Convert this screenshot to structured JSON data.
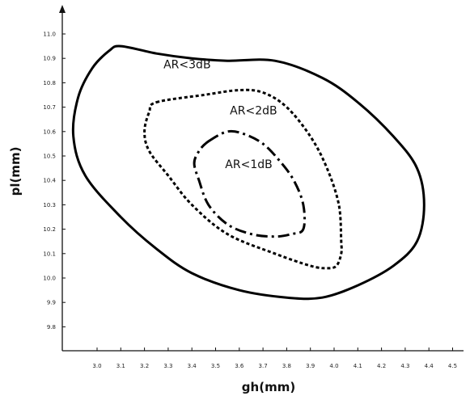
{
  "chart_data": {
    "type": "contour",
    "xlabel": "gh(mm)",
    "ylabel": "pl(mm)",
    "xlim": [
      2.8,
      4.5
    ],
    "ylim": [
      9.7,
      11.05
    ],
    "x_ticks": [
      "3.0",
      "3.1",
      "3.2",
      "3.3",
      "3.4",
      "3.5",
      "3.6",
      "3.7",
      "3.8",
      "3.9",
      "4.0",
      "4.1",
      "4.2",
      "4.3",
      "4.4",
      "4.5"
    ],
    "y_ticks": [
      "9.8",
      "9.9",
      "10.0",
      "10.1",
      "10.2",
      "10.3",
      "10.4",
      "10.5",
      "10.6",
      "10.7",
      "10.8",
      "10.9",
      "11.0"
    ],
    "series": [
      {
        "name": "AR<3dB",
        "style": "solid",
        "color": "#000000",
        "x": [
          3.1,
          3.25,
          3.4,
          3.55,
          3.75,
          3.95,
          4.1,
          4.25,
          4.35,
          4.38,
          4.35,
          4.25,
          4.1,
          3.95,
          3.8,
          3.6,
          3.4,
          3.25,
          3.1,
          2.95,
          2.9,
          2.92,
          2.98,
          3.05,
          3.1
        ],
        "y": [
          10.95,
          10.92,
          10.9,
          10.89,
          10.89,
          10.82,
          10.72,
          10.58,
          10.45,
          10.3,
          10.15,
          10.05,
          9.97,
          9.92,
          9.92,
          9.95,
          10.02,
          10.12,
          10.25,
          10.42,
          10.58,
          10.74,
          10.86,
          10.93,
          10.95
        ]
      },
      {
        "name": "AR<2dB",
        "style": "dotted",
        "color": "#000000",
        "x": [
          3.25,
          3.45,
          3.6,
          3.7,
          3.8,
          3.9,
          3.97,
          4.02,
          4.03,
          4.03,
          4.01,
          3.97,
          3.9,
          3.75,
          3.55,
          3.4,
          3.3,
          3.22,
          3.2,
          3.22,
          3.25
        ],
        "y": [
          10.72,
          10.75,
          10.77,
          10.76,
          10.7,
          10.58,
          10.45,
          10.3,
          10.15,
          10.1,
          10.05,
          10.04,
          10.05,
          10.1,
          10.18,
          10.3,
          10.42,
          10.52,
          10.6,
          10.68,
          10.72
        ]
      },
      {
        "name": "AR<1dB",
        "style": "dashdot",
        "color": "#000000",
        "x": [
          3.47,
          3.55,
          3.62,
          3.7,
          3.77,
          3.83,
          3.87,
          3.87,
          3.82,
          3.75,
          3.65,
          3.55,
          3.47,
          3.43,
          3.41,
          3.43,
          3.47
        ],
        "y": [
          10.56,
          10.6,
          10.59,
          10.55,
          10.48,
          10.4,
          10.3,
          10.2,
          10.18,
          10.17,
          10.18,
          10.22,
          10.3,
          10.4,
          10.47,
          10.52,
          10.56
        ]
      }
    ],
    "annotations": [
      {
        "text": "AR<3dB",
        "x": 3.38,
        "y": 10.86
      },
      {
        "text": "AR<2dB",
        "x": 3.66,
        "y": 10.67
      },
      {
        "text": "AR<1dB",
        "x": 3.64,
        "y": 10.45
      }
    ]
  }
}
